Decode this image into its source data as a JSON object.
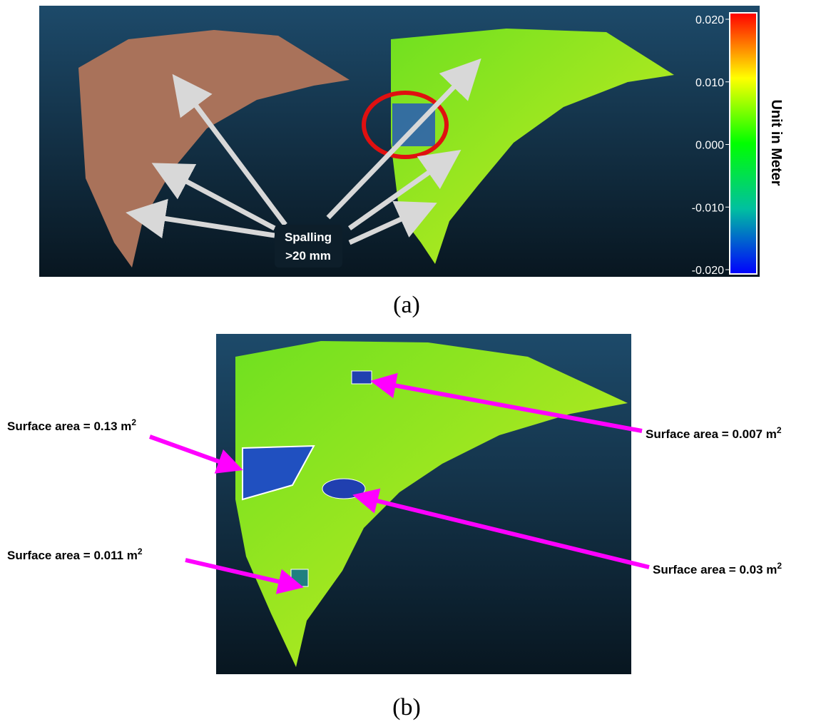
{
  "panel_a": {
    "annotation": {
      "line1": "Spalling",
      "line2": ">20 mm"
    },
    "colorbar": {
      "title": "Unit in Meter",
      "ticks": [
        {
          "value": 0.02,
          "label": "0.020"
        },
        {
          "value": 0.01,
          "label": "0.010"
        },
        {
          "value": 0,
          "label": "0.000"
        },
        {
          "value": -0.01,
          "label": "-0.010"
        },
        {
          "value": -0.02,
          "label": "-0.020"
        }
      ]
    },
    "caption": "(a)"
  },
  "panel_b": {
    "labels": [
      {
        "text": "Surface area = 0.13 m",
        "sup": "2"
      },
      {
        "text": "Surface area = 0.007 m",
        "sup": "2"
      },
      {
        "text": "Surface area = 0.03 m",
        "sup": "2"
      },
      {
        "text": "Surface area = 0.011 m",
        "sup": "2"
      }
    ],
    "caption": "(b)"
  }
}
